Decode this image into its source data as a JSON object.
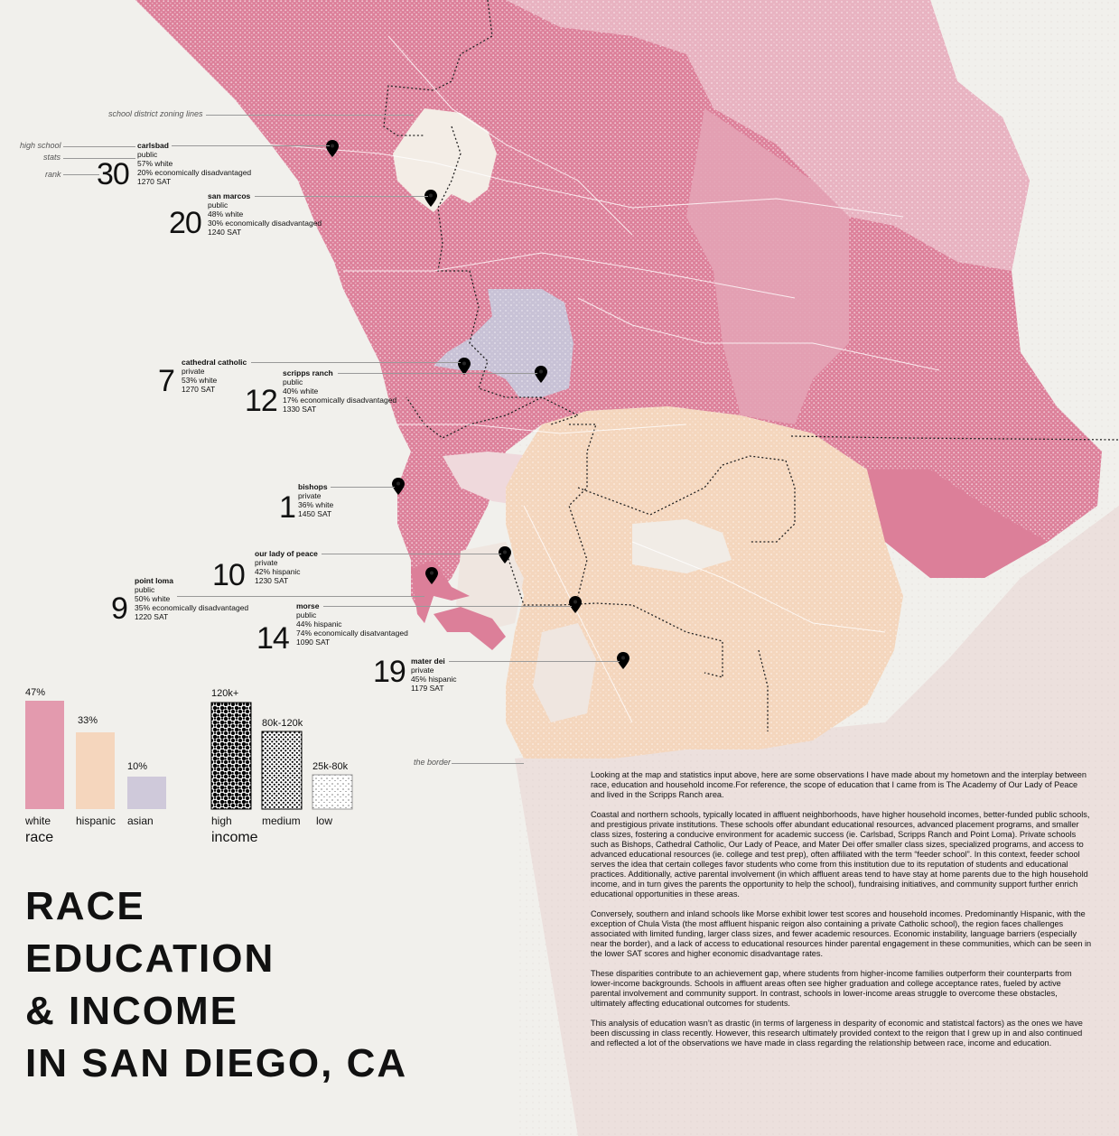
{
  "title": [
    "RACE",
    "EDUCATION",
    "& INCOME",
    "IN SAN DIEGO, CA"
  ],
  "annotations": {
    "zoning": "school district zoning lines",
    "high_school": "high school",
    "stats": "stats",
    "rank": "rank",
    "border": "the border"
  },
  "schools": [
    {
      "name": "carlsbad",
      "rank": "30",
      "lines": [
        "public",
        "57% white",
        "20% economically disadvantaged",
        "1270 SAT"
      ]
    },
    {
      "name": "san marcos",
      "rank": "20",
      "lines": [
        "public",
        "48% white",
        "30% economically disadvantaged",
        "1240 SAT"
      ]
    },
    {
      "name": "cathedral catholic",
      "rank": "7",
      "lines": [
        "private",
        "53% white",
        "1270 SAT"
      ]
    },
    {
      "name": "scripps ranch",
      "rank": "12",
      "lines": [
        "public",
        "40% white",
        "17% economically disadvantaged",
        "1330 SAT"
      ]
    },
    {
      "name": "bishops",
      "rank": "1",
      "lines": [
        "private",
        "36% white",
        "1450 SAT"
      ]
    },
    {
      "name": "our lady of peace",
      "rank": "10",
      "lines": [
        "private",
        "42% hispanic",
        "1230 SAT"
      ]
    },
    {
      "name": "point loma",
      "rank": "9",
      "lines": [
        "public",
        "50% white",
        "35% economically disadvantaged",
        "1220 SAT"
      ]
    },
    {
      "name": "morse",
      "rank": "14",
      "lines": [
        "public",
        "44% hispanic",
        "74% economically disatvantaged",
        "1090 SAT"
      ]
    },
    {
      "name": "mater dei",
      "rank": "19",
      "lines": [
        "private",
        "45% hispanic",
        "1179 SAT"
      ]
    }
  ],
  "race_legend": {
    "label": "race",
    "items": [
      {
        "category": "white",
        "value": "47%",
        "color": "#e39aae"
      },
      {
        "category": "hispanic",
        "value": "33%",
        "color": "#f5d6bd"
      },
      {
        "category": "asian",
        "value": "10%",
        "color": "#cfc9da"
      }
    ]
  },
  "income_legend": {
    "label": "income",
    "items": [
      {
        "category": "high",
        "value": "120k+",
        "density": "high"
      },
      {
        "category": "medium",
        "value": "80k-120k",
        "density": "medium"
      },
      {
        "category": "low",
        "value": "25k-80k",
        "density": "low"
      }
    ]
  },
  "colors": {
    "white_region": "#dd7f98",
    "hispanic_region": "#f5d4b8",
    "asian_region": "#c9c3d6",
    "background": "#f1f0ec"
  },
  "paragraphs": [
    "Looking at the map and statistics input above, here are some observations I have made about my hometown and the interplay between race, education and household income.For reference, the scope of education that I came from is The Academy of Our Lady of Peace and lived in the Scripps Ranch area.",
    "Coastal and northern schools, typically located in affluent neighborhoods, have higher household incomes, better-funded public schools, and prestigious private institutions. These schools offer abundant educational resources, advanced placement programs, and smaller class sizes, fostering a conducive environment for academic success (ie. Carlsbad, Scripps Ranch and Point Loma). Private schools such as Bishops, Cathedral Catholic, Our Lady of Peace, and Mater Dei offer smaller class sizes, specialized programs, and access to advanced educational resources (ie. college and test prep), often affiliated with the term “feeder school”. In this context, feeder school serves the  idea that certain colleges favor students who come from this institution due to its reputation of students and educational practices. Additionally, active parental involvement  (in which affluent areas tend to have stay at home parents due to the high household income, and in turn gives the parents the opportunity to help the school), fundraising initiatives, and community support further enrich educational opportunities in these areas.",
    "Conversely, southern and inland schools like Morse exhibit lower test scores and household incomes. Predominantly Hispanic, with the exception of Chula Vista (the most affluent hispanic reigon also containing a private Catholic school), the region faces challenges associated with limited funding, larger class sizes, and fewer academic resources. Economic instability, language barriers (especially near the border), and a lack of access to educational resources hinder parental engagement in these communities, which can be seen in the lower SAT scores and higher economic disadvantage rates.",
    "These disparities contribute to an achievement gap, where students from higher-income families outperform their counterparts from lower-income backgrounds. Schools in affluent areas often see higher graduation and college acceptance rates, fueled by active parental involvement and community support. In contrast, schools in lower-income areas struggle to overcome these obstacles, ultimately affecting educational outcomes for students.",
    "This analysis of education wasn’t as drastic (in terms of largeness in desparity of economic and statistcal factors) as the ones we have been discussing in class recently. However, this research ultimately provided context to the reigon that I grew up in and also continued and reflected a lot of the observations we have made in class regarding the relationship between race, income and education."
  ]
}
